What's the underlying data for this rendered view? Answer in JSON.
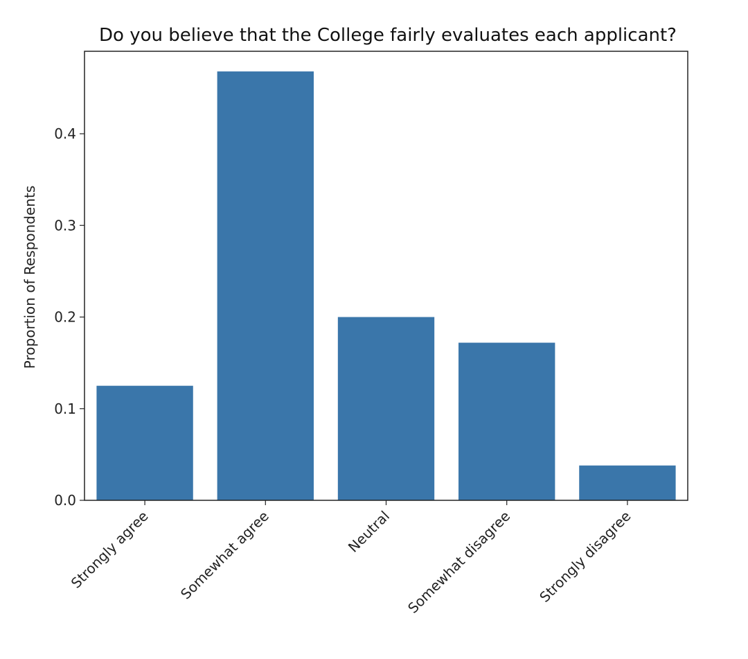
{
  "chart_data": {
    "type": "bar",
    "title": "Do you believe that the College fairly evaluates each applicant?",
    "xlabel": "",
    "ylabel": "Proportion of Respondents",
    "categories": [
      "Strongly agree",
      "Somewhat agree",
      "Neutral",
      "Somewhat disagree",
      "Strongly disagree"
    ],
    "values": [
      0.125,
      0.468,
      0.2,
      0.172,
      0.038
    ],
    "yticks": [
      0.0,
      0.1,
      0.2,
      0.3,
      0.4
    ],
    "ytick_labels": [
      "0.0",
      "0.1",
      "0.2",
      "0.3",
      "0.4"
    ],
    "ylim": [
      0,
      0.49
    ],
    "grid": false,
    "legend": "none",
    "bar_color": "#3a76aa",
    "axis_color": "#222222"
  }
}
